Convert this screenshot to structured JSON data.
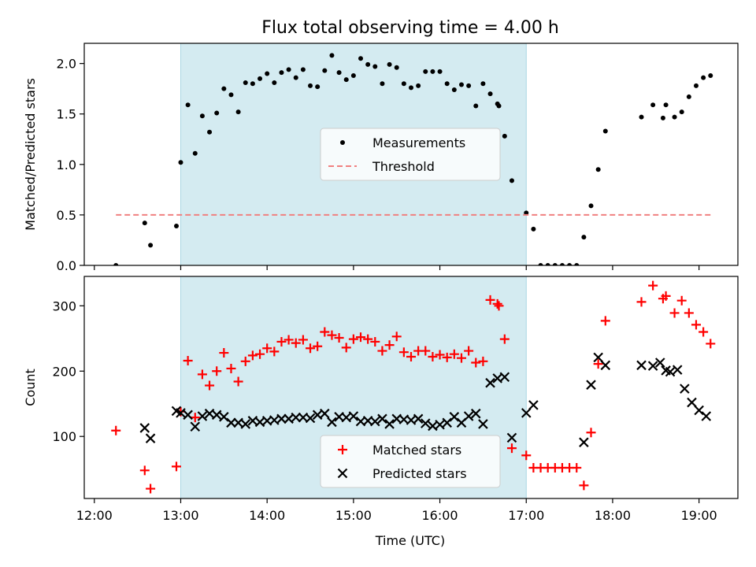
{
  "figure": {
    "title": "Flux total observing time = 4.00 h",
    "xlabel": "Time (UTC)",
    "x_ticks": [
      "12:00",
      "13:00",
      "14:00",
      "15:00",
      "16:00",
      "17:00",
      "18:00",
      "19:00"
    ],
    "observing_window": {
      "start": "13:00",
      "end": "17:00",
      "color": "#d4ebf1"
    }
  },
  "chart_data": [
    {
      "type": "scatter",
      "ylabel": "Matched/Predicted stars",
      "xlim": [
        "11:53",
        "19:27"
      ],
      "ylim": [
        0,
        2.2
      ],
      "y_ticks": [
        "0.0",
        "0.5",
        "1.0",
        "1.5",
        "2.0"
      ],
      "legend_position": "center",
      "series": [
        {
          "name": "Measurements",
          "marker": "dot",
          "color": "#000000",
          "points": [
            [
              "12:15",
              0.0
            ],
            [
              "12:35",
              0.42
            ],
            [
              "12:39",
              0.2
            ],
            [
              "12:57",
              0.39
            ],
            [
              "13:00",
              1.02
            ],
            [
              "13:05",
              1.59
            ],
            [
              "13:10",
              1.11
            ],
            [
              "13:15",
              1.48
            ],
            [
              "13:20",
              1.32
            ],
            [
              "13:25",
              1.51
            ],
            [
              "13:30",
              1.75
            ],
            [
              "13:35",
              1.69
            ],
            [
              "13:40",
              1.52
            ],
            [
              "13:45",
              1.81
            ],
            [
              "13:50",
              1.8
            ],
            [
              "13:55",
              1.85
            ],
            [
              "14:00",
              1.9
            ],
            [
              "14:05",
              1.81
            ],
            [
              "14:10",
              1.91
            ],
            [
              "14:15",
              1.94
            ],
            [
              "14:20",
              1.86
            ],
            [
              "14:25",
              1.94
            ],
            [
              "14:30",
              1.78
            ],
            [
              "14:35",
              1.77
            ],
            [
              "14:40",
              1.93
            ],
            [
              "14:45",
              2.08
            ],
            [
              "14:50",
              1.91
            ],
            [
              "14:55",
              1.84
            ],
            [
              "15:00",
              1.88
            ],
            [
              "15:05",
              2.05
            ],
            [
              "15:10",
              1.99
            ],
            [
              "15:15",
              1.97
            ],
            [
              "15:20",
              1.8
            ],
            [
              "15:25",
              1.99
            ],
            [
              "15:30",
              1.96
            ],
            [
              "15:35",
              1.8
            ],
            [
              "15:40",
              1.76
            ],
            [
              "15:45",
              1.78
            ],
            [
              "15:50",
              1.92
            ],
            [
              "15:55",
              1.92
            ],
            [
              "16:00",
              1.92
            ],
            [
              "16:05",
              1.8
            ],
            [
              "16:10",
              1.74
            ],
            [
              "16:15",
              1.79
            ],
            [
              "16:20",
              1.78
            ],
            [
              "16:25",
              1.58
            ],
            [
              "16:30",
              1.8
            ],
            [
              "16:35",
              1.7
            ],
            [
              "16:40",
              1.6
            ],
            [
              "16:41",
              1.58
            ],
            [
              "16:45",
              1.28
            ],
            [
              "16:50",
              0.84
            ],
            [
              "17:00",
              0.52
            ],
            [
              "17:05",
              0.36
            ],
            [
              "17:10",
              0.0
            ],
            [
              "17:15",
              0.0
            ],
            [
              "17:20",
              0.0
            ],
            [
              "17:25",
              0.0
            ],
            [
              "17:30",
              0.0
            ],
            [
              "17:35",
              0.0
            ],
            [
              "17:40",
              0.28
            ],
            [
              "17:45",
              0.59
            ],
            [
              "17:50",
              0.95
            ],
            [
              "17:55",
              1.33
            ],
            [
              "18:20",
              1.47
            ],
            [
              "18:28",
              1.59
            ],
            [
              "18:35",
              1.46
            ],
            [
              "18:37",
              1.59
            ],
            [
              "18:43",
              1.47
            ],
            [
              "18:48",
              1.52
            ],
            [
              "18:53",
              1.67
            ],
            [
              "18:58",
              1.78
            ],
            [
              "19:03",
              1.86
            ],
            [
              "19:08",
              1.88
            ]
          ]
        },
        {
          "name": "Threshold",
          "line_style": "dashed",
          "color": "#f08080",
          "points": [
            [
              "12:15",
              0.5
            ],
            [
              "19:08",
              0.5
            ]
          ]
        }
      ]
    },
    {
      "type": "scatter",
      "ylabel": "Count",
      "xlim": [
        "11:53",
        "19:27"
      ],
      "ylim": [
        5,
        345
      ],
      "y_ticks": [
        "100",
        "200",
        "300"
      ],
      "legend_position": "lower center",
      "series": [
        {
          "name": "Matched stars",
          "marker": "plus",
          "color": "#ff0000",
          "points": [
            [
              "12:15",
              109
            ],
            [
              "12:35",
              48
            ],
            [
              "12:39",
              20
            ],
            [
              "12:57",
              54
            ],
            [
              "13:00",
              138
            ],
            [
              "13:05",
              216
            ],
            [
              "13:10",
              129
            ],
            [
              "13:15",
              195
            ],
            [
              "13:20",
              178
            ],
            [
              "13:25",
              200
            ],
            [
              "13:30",
              228
            ],
            [
              "13:35",
              204
            ],
            [
              "13:40",
              184
            ],
            [
              "13:45",
              215
            ],
            [
              "13:50",
              224
            ],
            [
              "13:55",
              226
            ],
            [
              "14:00",
              235
            ],
            [
              "14:05",
              230
            ],
            [
              "14:10",
              245
            ],
            [
              "14:15",
              248
            ],
            [
              "14:20",
              243
            ],
            [
              "14:25",
              248
            ],
            [
              "14:30",
              235
            ],
            [
              "14:35",
              238
            ],
            [
              "14:40",
              260
            ],
            [
              "14:45",
              255
            ],
            [
              "14:50",
              251
            ],
            [
              "14:55",
              236
            ],
            [
              "15:00",
              249
            ],
            [
              "15:05",
              252
            ],
            [
              "15:10",
              249
            ],
            [
              "15:15",
              245
            ],
            [
              "15:20",
              231
            ],
            [
              "15:25",
              240
            ],
            [
              "15:30",
              253
            ],
            [
              "15:35",
              229
            ],
            [
              "15:40",
              222
            ],
            [
              "15:45",
              231
            ],
            [
              "15:50",
              231
            ],
            [
              "15:55",
              222
            ],
            [
              "16:00",
              225
            ],
            [
              "16:05",
              221
            ],
            [
              "16:10",
              226
            ],
            [
              "16:15",
              220
            ],
            [
              "16:20",
              231
            ],
            [
              "16:25",
              213
            ],
            [
              "16:30",
              215
            ],
            [
              "16:35",
              309
            ],
            [
              "16:40",
              303
            ],
            [
              "16:41",
              300
            ],
            [
              "16:45",
              249
            ],
            [
              "16:50",
              82
            ],
            [
              "17:00",
              71
            ],
            [
              "17:05",
              52
            ],
            [
              "17:10",
              52
            ],
            [
              "17:15",
              52
            ],
            [
              "17:20",
              52
            ],
            [
              "17:25",
              52
            ],
            [
              "17:30",
              52
            ],
            [
              "17:35",
              52
            ],
            [
              "17:40",
              25
            ],
            [
              "17:45",
              106
            ],
            [
              "17:50",
              211
            ],
            [
              "17:55",
              277
            ],
            [
              "18:20",
              306
            ],
            [
              "18:28",
              331
            ],
            [
              "18:35",
              311
            ],
            [
              "18:37",
              315
            ],
            [
              "18:43",
              289
            ],
            [
              "18:48",
              308
            ],
            [
              "18:53",
              289
            ],
            [
              "18:58",
              271
            ],
            [
              "19:03",
              260
            ],
            [
              "19:08",
              242
            ]
          ]
        },
        {
          "name": "Predicted stars",
          "marker": "x",
          "color": "#000000",
          "points": [
            [
              "12:35",
              113
            ],
            [
              "12:39",
              97
            ],
            [
              "12:57",
              139
            ],
            [
              "13:00",
              136
            ],
            [
              "13:05",
              133
            ],
            [
              "13:10",
              115
            ],
            [
              "13:15",
              131
            ],
            [
              "13:20",
              135
            ],
            [
              "13:25",
              133
            ],
            [
              "13:30",
              130
            ],
            [
              "13:35",
              121
            ],
            [
              "13:40",
              121
            ],
            [
              "13:45",
              119
            ],
            [
              "13:50",
              124
            ],
            [
              "13:55",
              122
            ],
            [
              "14:00",
              124
            ],
            [
              "14:05",
              125
            ],
            [
              "14:10",
              127
            ],
            [
              "14:15",
              127
            ],
            [
              "14:20",
              129
            ],
            [
              "14:25",
              129
            ],
            [
              "14:30",
              128
            ],
            [
              "14:35",
              133
            ],
            [
              "14:40",
              135
            ],
            [
              "14:45",
              122
            ],
            [
              "14:50",
              130
            ],
            [
              "14:55",
              129
            ],
            [
              "15:00",
              131
            ],
            [
              "15:05",
              123
            ],
            [
              "15:10",
              124
            ],
            [
              "15:15",
              123
            ],
            [
              "15:20",
              127
            ],
            [
              "15:25",
              119
            ],
            [
              "15:30",
              127
            ],
            [
              "15:35",
              126
            ],
            [
              "15:40",
              125
            ],
            [
              "15:45",
              127
            ],
            [
              "15:50",
              120
            ],
            [
              "15:55",
              116
            ],
            [
              "16:00",
              118
            ],
            [
              "16:05",
              121
            ],
            [
              "16:10",
              130
            ],
            [
              "16:15",
              121
            ],
            [
              "16:20",
              131
            ],
            [
              "16:25",
              135
            ],
            [
              "16:30",
              119
            ],
            [
              "16:35",
              182
            ],
            [
              "16:40",
              189
            ],
            [
              "16:45",
              191
            ],
            [
              "16:50",
              98
            ],
            [
              "17:00",
              136
            ],
            [
              "17:05",
              148
            ],
            [
              "17:40",
              91
            ],
            [
              "17:45",
              179
            ],
            [
              "17:50",
              221
            ],
            [
              "17:55",
              209
            ],
            [
              "18:20",
              209
            ],
            [
              "18:28",
              208
            ],
            [
              "18:33",
              213
            ],
            [
              "18:37",
              201
            ],
            [
              "18:40",
              199
            ],
            [
              "18:45",
              202
            ],
            [
              "18:50",
              173
            ],
            [
              "18:55",
              152
            ],
            [
              "19:00",
              140
            ],
            [
              "19:05",
              131
            ]
          ]
        }
      ]
    }
  ]
}
